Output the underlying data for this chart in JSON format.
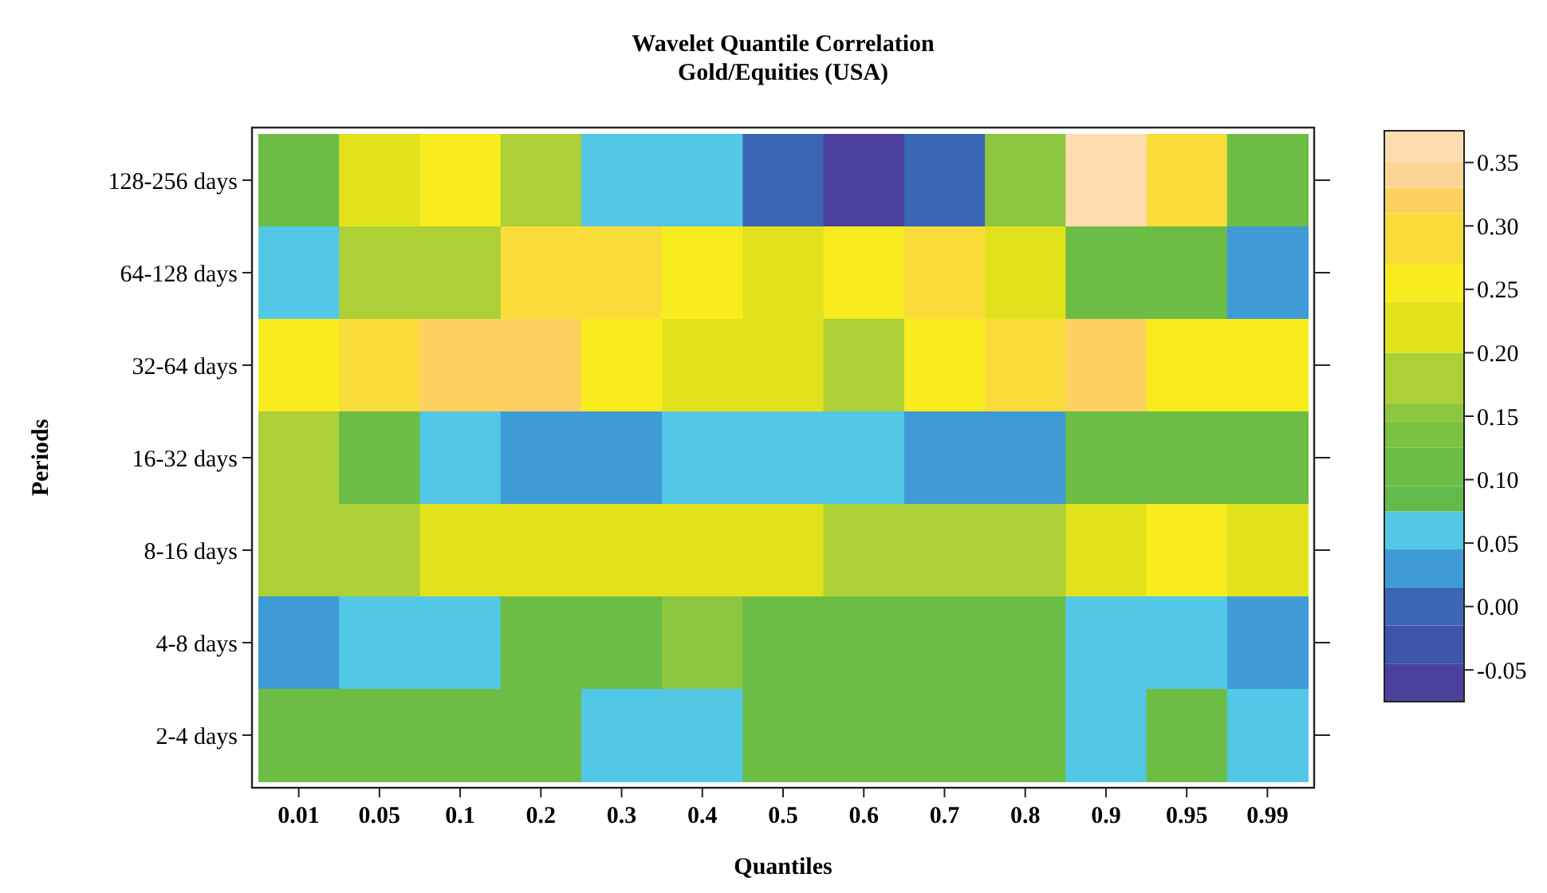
{
  "chart_data": {
    "type": "heatmap",
    "title": "Wavelet Quantile Correlation",
    "subtitle": "Gold/Equities (USA)",
    "xlabel": "Quantiles",
    "ylabel": "Periods",
    "categories": [
      "0.01",
      "0.05",
      "0.1",
      "0.2",
      "0.3",
      "0.4",
      "0.5",
      "0.6",
      "0.7",
      "0.8",
      "0.9",
      "0.95",
      "0.99"
    ],
    "y_categories": [
      "128-256 days",
      "64-128 days",
      "32-64 days",
      "16-32 days",
      "8-16 days",
      "4-8 days",
      "2-4 days"
    ],
    "cells": [
      [
        0.11,
        0.22,
        0.26,
        0.18,
        0.06,
        0.06,
        0.0,
        -0.06,
        0.0,
        0.15,
        0.36,
        0.29,
        0.11
      ],
      [
        0.06,
        0.18,
        0.18,
        0.29,
        0.29,
        0.26,
        0.22,
        0.26,
        0.29,
        0.22,
        0.11,
        0.11,
        0.03
      ],
      [
        0.26,
        0.29,
        0.32,
        0.32,
        0.26,
        0.22,
        0.22,
        0.18,
        0.26,
        0.29,
        0.32,
        0.26,
        0.26
      ],
      [
        0.18,
        0.11,
        0.06,
        0.03,
        0.03,
        0.06,
        0.06,
        0.06,
        0.03,
        0.03,
        0.11,
        0.11,
        0.11
      ],
      [
        0.18,
        0.18,
        0.22,
        0.22,
        0.22,
        0.22,
        0.22,
        0.18,
        0.18,
        0.18,
        0.22,
        0.26,
        0.22
      ],
      [
        0.03,
        0.06,
        0.06,
        0.11,
        0.11,
        0.15,
        0.11,
        0.11,
        0.11,
        0.11,
        0.06,
        0.06,
        0.03
      ],
      [
        0.11,
        0.11,
        0.11,
        0.11,
        0.06,
        0.06,
        0.11,
        0.11,
        0.11,
        0.11,
        0.06,
        0.11,
        0.06
      ]
    ],
    "clim": [
      -0.075,
      0.375
    ],
    "cticks": [
      {
        "value": -0.05,
        "label": "-0.05"
      },
      {
        "value": 0,
        "label": "0.00"
      },
      {
        "value": 0.05,
        "label": "0.05"
      },
      {
        "value": 0.1,
        "label": "0.10"
      },
      {
        "value": 0.15,
        "label": "0.15"
      },
      {
        "value": 0.2,
        "label": "0.20"
      },
      {
        "value": 0.25,
        "label": "0.25"
      },
      {
        "value": 0.3,
        "label": "0.30"
      },
      {
        "value": 0.35,
        "label": "0.35"
      }
    ]
  }
}
